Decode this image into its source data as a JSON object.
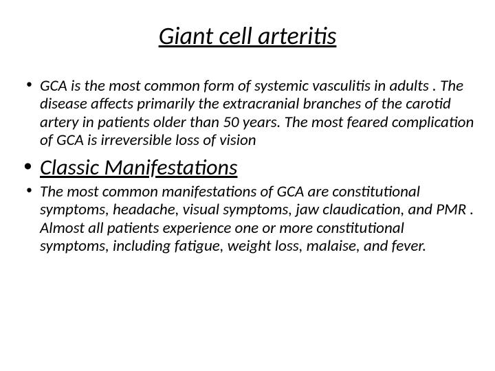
{
  "title": "Giant cell arteritis",
  "bullets": {
    "intro": "GCA is the most common form of systemic vasculitis in adults . The disease affects primarily the extracranial branches of the carotid artery in patients older than 50 years. The most feared complication of GCA is irreversible loss of vision",
    "heading": "Classic Manifestations",
    "details": "The most common manifestations of GCA are constitutional symptoms, headache, visual symptoms, jaw claudication, and PMR . Almost all patients experience one or more constitutional symptoms, including fatigue, weight loss, malaise, and fever."
  },
  "styling": {
    "title_fontsize": 36,
    "body_fontsize": 23,
    "heading_fontsize": 32,
    "font_style": "italic",
    "text_color": "#000000",
    "background_color": "#ffffff"
  }
}
